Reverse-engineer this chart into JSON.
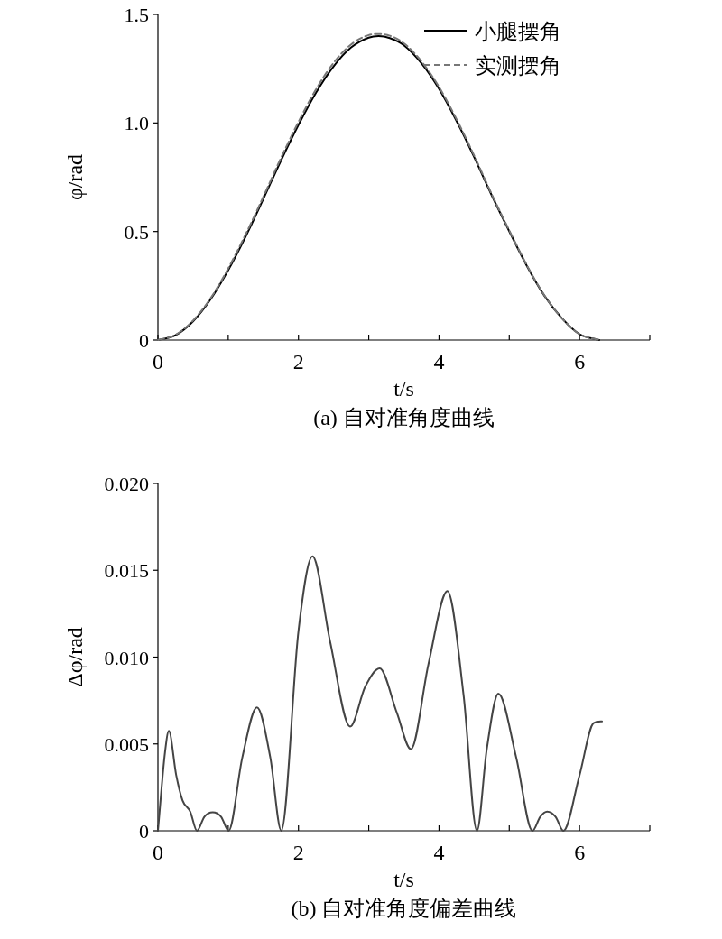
{
  "chart_data": [
    {
      "type": "line",
      "title": "(a) 自对准角度曲线",
      "xlabel": "t/s",
      "ylabel": "φ/rad",
      "xlim": [
        0,
        7
      ],
      "ylim": [
        0,
        1.5
      ],
      "xticks": [
        0,
        {
          "value": 1,
          "label": null
        },
        2,
        {
          "value": 3,
          "label": null
        },
        4,
        {
          "value": 5,
          "label": null
        },
        6,
        {
          "value": 7,
          "label": null
        }
      ],
      "yticks": [
        0,
        0.5,
        {
          "value": 1,
          "label": "1.0"
        },
        1.5
      ],
      "grid": false,
      "legend": "top right",
      "series": [
        {
          "name": "小腿摆角",
          "color": "#000000",
          "line_style": "solid",
          "x": [
            0,
            0.25,
            0.5,
            0.75,
            1,
            1.25,
            1.5,
            1.75,
            2,
            2.25,
            2.5,
            2.75,
            3,
            3.14,
            3.3,
            3.5,
            3.75,
            4,
            4.25,
            4.5,
            4.75,
            5,
            5.25,
            5.5,
            5.75,
            6,
            6.28
          ],
          "values": [
            0,
            0.022,
            0.086,
            0.188,
            0.322,
            0.478,
            0.65,
            0.826,
            0.991,
            1.14,
            1.261,
            1.348,
            1.393,
            1.4,
            1.391,
            1.358,
            1.275,
            1.157,
            1.009,
            0.843,
            0.667,
            0.501,
            0.342,
            0.204,
            0.1,
            0.027,
            0
          ]
        },
        {
          "name": "实测摆角",
          "color": "#777777",
          "line_style": "dashed",
          "x": [
            0,
            0.25,
            0.5,
            0.75,
            1,
            1.25,
            1.5,
            1.75,
            2,
            2.25,
            2.5,
            2.75,
            3,
            3.14,
            3.3,
            3.5,
            3.75,
            4,
            4.25,
            4.5,
            4.75,
            5,
            5.25,
            5.5,
            5.75,
            6,
            6.28
          ],
          "values": [
            0,
            0.024,
            0.09,
            0.193,
            0.33,
            0.488,
            0.66,
            0.838,
            1.005,
            1.155,
            1.277,
            1.362,
            1.405,
            1.41,
            1.402,
            1.367,
            1.284,
            1.166,
            1.017,
            0.85,
            0.672,
            0.505,
            0.345,
            0.206,
            0.1,
            0.027,
            0
          ]
        }
      ]
    },
    {
      "type": "line",
      "title": "(b) 自对准角度偏差曲线",
      "xlabel": "t/s",
      "ylabel": "Δφ/rad",
      "xlim": [
        0,
        7
      ],
      "ylim": [
        0,
        0.02
      ],
      "xticks": [
        0,
        {
          "value": 1,
          "label": null
        },
        2,
        {
          "value": 3,
          "label": null
        },
        4,
        {
          "value": 5,
          "label": null
        },
        6,
        {
          "value": 7,
          "label": null
        }
      ],
      "yticks": [
        0,
        0.005,
        {
          "value": 0.01,
          "label": "0.010"
        },
        0.015,
        {
          "value": 0.02,
          "label": "0.020"
        }
      ],
      "grid": false,
      "legend": false,
      "series": [
        {
          "color": "#444444",
          "line_style": "solid",
          "x": [
            0,
            0.1,
            0.155,
            0.26,
            0.35,
            0.46,
            0.555,
            0.66,
            0.78,
            0.9,
            1.006,
            1.2,
            1.41,
            1.6,
            1.755,
            2.0,
            2.2,
            2.45,
            2.735,
            2.95,
            3.155,
            3.4,
            3.6,
            3.85,
            4.12,
            4.35,
            4.54,
            4.68,
            4.845,
            5.1,
            5.33,
            5.44,
            5.54,
            5.66,
            5.77,
            6.0,
            6.2,
            6.32
          ],
          "values": [
            0,
            0.0045,
            0.00575,
            0.0032,
            0.00175,
            0.0011,
            0,
            0.0008,
            0.00106,
            0.0008,
            0,
            0.0042,
            0.0071,
            0.0042,
            0,
            0.0115,
            0.0158,
            0.0109,
            0.006,
            0.0083,
            0.00935,
            0.0068,
            0.0047,
            0.0096,
            0.0138,
            0.0078,
            0,
            0.0047,
            0.0079,
            0.0042,
            0,
            0.0008,
            0.0011,
            0.0008,
            0,
            0.0032,
            0.0062,
            0.0063
          ]
        }
      ]
    }
  ]
}
